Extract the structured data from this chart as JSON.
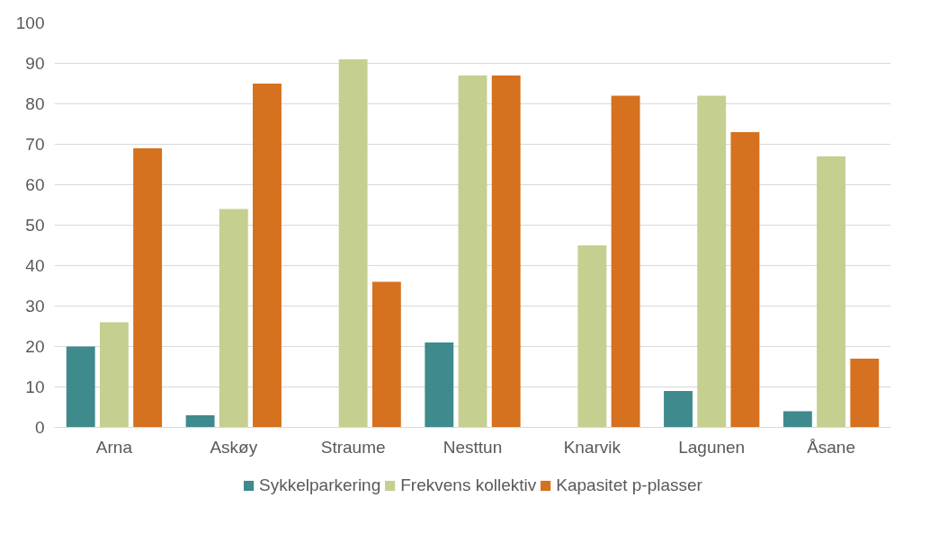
{
  "chart_data": {
    "type": "bar",
    "categories": [
      "Arna",
      "Askøy",
      "Straume",
      "Nesttun",
      "Knarvik",
      "Lagunen",
      "Åsane"
    ],
    "series": [
      {
        "name": "Sykkelparkering",
        "color": "#3f8a8c",
        "values": [
          20,
          3,
          null,
          21,
          null,
          9,
          4
        ]
      },
      {
        "name": "Frekvens kollektiv",
        "color": "#c5cf90",
        "values": [
          26,
          54,
          91,
          87,
          45,
          82,
          67
        ]
      },
      {
        "name": "Kapasitet p-plasser",
        "color": "#d5711f",
        "values": [
          69,
          85,
          36,
          87,
          82,
          73,
          17
        ]
      }
    ],
    "ylim": [
      0,
      100
    ],
    "yticks": [
      0,
      10,
      20,
      30,
      40,
      50,
      60,
      70,
      80,
      90,
      100
    ],
    "grid": "y",
    "legend": "bottom"
  }
}
